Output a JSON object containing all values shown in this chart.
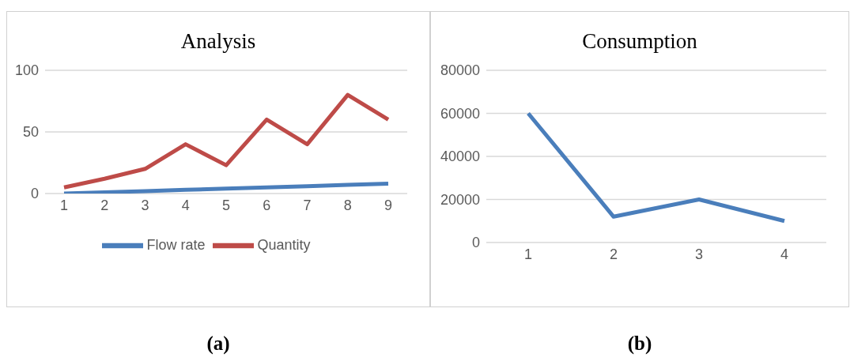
{
  "chart_data": [
    {
      "type": "line",
      "title": "Analysis",
      "categories": [
        "1",
        "2",
        "3",
        "4",
        "5",
        "6",
        "7",
        "8",
        "9"
      ],
      "series": [
        {
          "name": "Flow rate",
          "color": "#4a7ebb",
          "values": [
            0,
            1,
            2,
            3,
            4,
            5,
            6,
            7,
            8
          ]
        },
        {
          "name": "Quantity",
          "color": "#be4b48",
          "values": [
            5,
            12,
            20,
            40,
            23,
            60,
            40,
            80,
            60
          ]
        }
      ],
      "ylim": [
        0,
        100
      ],
      "yticks": [
        0,
        50,
        100
      ],
      "grid": "y",
      "legend": "bottom",
      "marker": "none",
      "line_style": "solid",
      "annotations": [
        "(a)"
      ]
    },
    {
      "type": "line",
      "title": "Consumption",
      "categories": [
        "1",
        "2",
        "3",
        "4"
      ],
      "series": [
        {
          "color": "#4a7ebb",
          "values": [
            60000,
            12000,
            20000,
            10000
          ]
        }
      ],
      "ylim": [
        0,
        80000
      ],
      "yticks": [
        0,
        20000,
        40000,
        60000,
        80000
      ],
      "grid": "y",
      "legend": false,
      "marker": "none",
      "line_style": "solid",
      "annotations": [
        "(b)"
      ]
    }
  ]
}
